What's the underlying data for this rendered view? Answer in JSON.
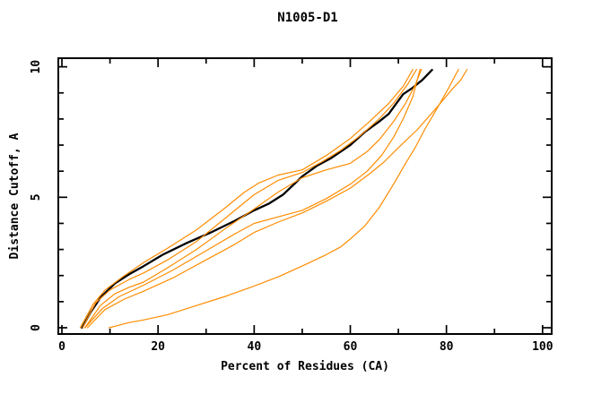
{
  "title": "N1005-D1",
  "chart_data": {
    "type": "line",
    "title": "N1005-D1",
    "xlabel": "Percent of Residues (CA)",
    "ylabel": "Distance Cutoff, A",
    "xlim": [
      -0.75,
      101.9
    ],
    "ylim": [
      -0.24,
      10.33
    ],
    "x_major_ticks": [
      0,
      20,
      40,
      60,
      80,
      100
    ],
    "x_minor_ticks": [
      10,
      30,
      50,
      70,
      90
    ],
    "y_major_ticks": [
      0,
      5,
      10
    ],
    "y_minor_ticks": [
      1,
      2,
      3,
      4,
      6,
      7,
      8,
      9
    ],
    "grid": false,
    "legend": "none",
    "axis_color": "#000000",
    "model_color": "#ff8c00",
    "reference_color": "#000000",
    "series": [
      {
        "name": "reference-black",
        "color": "#000000",
        "width": 2.3,
        "points": [
          [
            4.2,
            0.0
          ],
          [
            6,
            0.6
          ],
          [
            8,
            1.15
          ],
          [
            11,
            1.7
          ],
          [
            14,
            2.05
          ],
          [
            17,
            2.36
          ],
          [
            21,
            2.8
          ],
          [
            26,
            3.25
          ],
          [
            31,
            3.65
          ],
          [
            36,
            4.1
          ],
          [
            40,
            4.5
          ],
          [
            43,
            4.75
          ],
          [
            46,
            5.1
          ],
          [
            50,
            5.8
          ],
          [
            53,
            6.2
          ],
          [
            56,
            6.5
          ],
          [
            58,
            6.75
          ],
          [
            60,
            7.0
          ],
          [
            63,
            7.5
          ],
          [
            66,
            7.9
          ],
          [
            68,
            8.2
          ],
          [
            71,
            8.95
          ],
          [
            73,
            9.2
          ],
          [
            75,
            9.5
          ],
          [
            77,
            9.88
          ]
        ]
      },
      {
        "name": "model-orange-1",
        "color": "#ff8c00",
        "width": 1.2,
        "points": [
          [
            3.8,
            0.0
          ],
          [
            6.5,
            0.9
          ],
          [
            9,
            1.45
          ],
          [
            13,
            2.0
          ],
          [
            17,
            2.5
          ],
          [
            22,
            3.05
          ],
          [
            28,
            3.75
          ],
          [
            34,
            4.6
          ],
          [
            38,
            5.2
          ],
          [
            41,
            5.55
          ],
          [
            45,
            5.85
          ],
          [
            50,
            6.05
          ],
          [
            55,
            6.6
          ],
          [
            60,
            7.25
          ],
          [
            64,
            7.9
          ],
          [
            68,
            8.6
          ],
          [
            71,
            9.25
          ],
          [
            73,
            9.9
          ]
        ]
      },
      {
        "name": "model-orange-2",
        "color": "#ff8c00",
        "width": 1.2,
        "points": [
          [
            4.3,
            0.0
          ],
          [
            7,
            0.95
          ],
          [
            10,
            1.45
          ],
          [
            14,
            1.85
          ],
          [
            17,
            2.1
          ],
          [
            22,
            2.6
          ],
          [
            28,
            3.3
          ],
          [
            34,
            4.2
          ],
          [
            40,
            5.1
          ],
          [
            45,
            5.65
          ],
          [
            50,
            5.95
          ],
          [
            54,
            6.35
          ],
          [
            58,
            6.8
          ],
          [
            62,
            7.35
          ],
          [
            66,
            8.0
          ],
          [
            69,
            8.6
          ],
          [
            72,
            9.35
          ],
          [
            73.8,
            9.9
          ]
        ]
      },
      {
        "name": "model-orange-3",
        "color": "#ff8c00",
        "width": 1.2,
        "points": [
          [
            4.8,
            0.0
          ],
          [
            8,
            0.85
          ],
          [
            11,
            1.3
          ],
          [
            14,
            1.55
          ],
          [
            17,
            1.75
          ],
          [
            22,
            2.3
          ],
          [
            28,
            3.0
          ],
          [
            34,
            3.8
          ],
          [
            40,
            4.55
          ],
          [
            45,
            5.2
          ],
          [
            50,
            5.75
          ],
          [
            55,
            6.05
          ],
          [
            60,
            6.3
          ],
          [
            63.5,
            6.75
          ],
          [
            66,
            7.2
          ],
          [
            69,
            7.9
          ],
          [
            71.5,
            8.6
          ],
          [
            73.5,
            9.3
          ],
          [
            74.8,
            9.9
          ]
        ]
      },
      {
        "name": "model-orange-4",
        "color": "#ff8c00",
        "width": 1.2,
        "points": [
          [
            4.8,
            0.0
          ],
          [
            8.5,
            0.75
          ],
          [
            12,
            1.2
          ],
          [
            17,
            1.63
          ],
          [
            23,
            2.2
          ],
          [
            30,
            2.95
          ],
          [
            36,
            3.6
          ],
          [
            40,
            4.0
          ],
          [
            45,
            4.25
          ],
          [
            50,
            4.5
          ],
          [
            55,
            4.95
          ],
          [
            60,
            5.5
          ],
          [
            63.5,
            6.0
          ],
          [
            66.5,
            6.6
          ],
          [
            69,
            7.3
          ],
          [
            71,
            8.0
          ],
          [
            73,
            8.85
          ],
          [
            74.5,
            9.9
          ]
        ]
      },
      {
        "name": "model-orange-5",
        "color": "#ff8c00",
        "width": 1.2,
        "points": [
          [
            5.3,
            0.0
          ],
          [
            9,
            0.7
          ],
          [
            13,
            1.1
          ],
          [
            17,
            1.4
          ],
          [
            23,
            1.9
          ],
          [
            30,
            2.6
          ],
          [
            36,
            3.2
          ],
          [
            40,
            3.65
          ],
          [
            45,
            4.05
          ],
          [
            50,
            4.4
          ],
          [
            55,
            4.85
          ],
          [
            60,
            5.35
          ],
          [
            64,
            5.9
          ],
          [
            67,
            6.35
          ],
          [
            70,
            6.9
          ],
          [
            74,
            7.6
          ],
          [
            78.5,
            8.55
          ],
          [
            81,
            9.1
          ],
          [
            83,
            9.5
          ],
          [
            84.3,
            9.9
          ]
        ]
      },
      {
        "name": "model-orange-6",
        "color": "#ff8c00",
        "width": 1.2,
        "points": [
          [
            9.8,
            0.0
          ],
          [
            14,
            0.2
          ],
          [
            17,
            0.3
          ],
          [
            22,
            0.5
          ],
          [
            28,
            0.85
          ],
          [
            34,
            1.2
          ],
          [
            40,
            1.6
          ],
          [
            45,
            1.95
          ],
          [
            51,
            2.45
          ],
          [
            55,
            2.8
          ],
          [
            58,
            3.1
          ],
          [
            60,
            3.4
          ],
          [
            63,
            3.9
          ],
          [
            66,
            4.6
          ],
          [
            69,
            5.5
          ],
          [
            71.5,
            6.3
          ],
          [
            73.5,
            6.9
          ],
          [
            75.5,
            7.6
          ],
          [
            78.5,
            8.55
          ],
          [
            80.5,
            9.2
          ],
          [
            82.5,
            9.9
          ]
        ]
      }
    ]
  }
}
